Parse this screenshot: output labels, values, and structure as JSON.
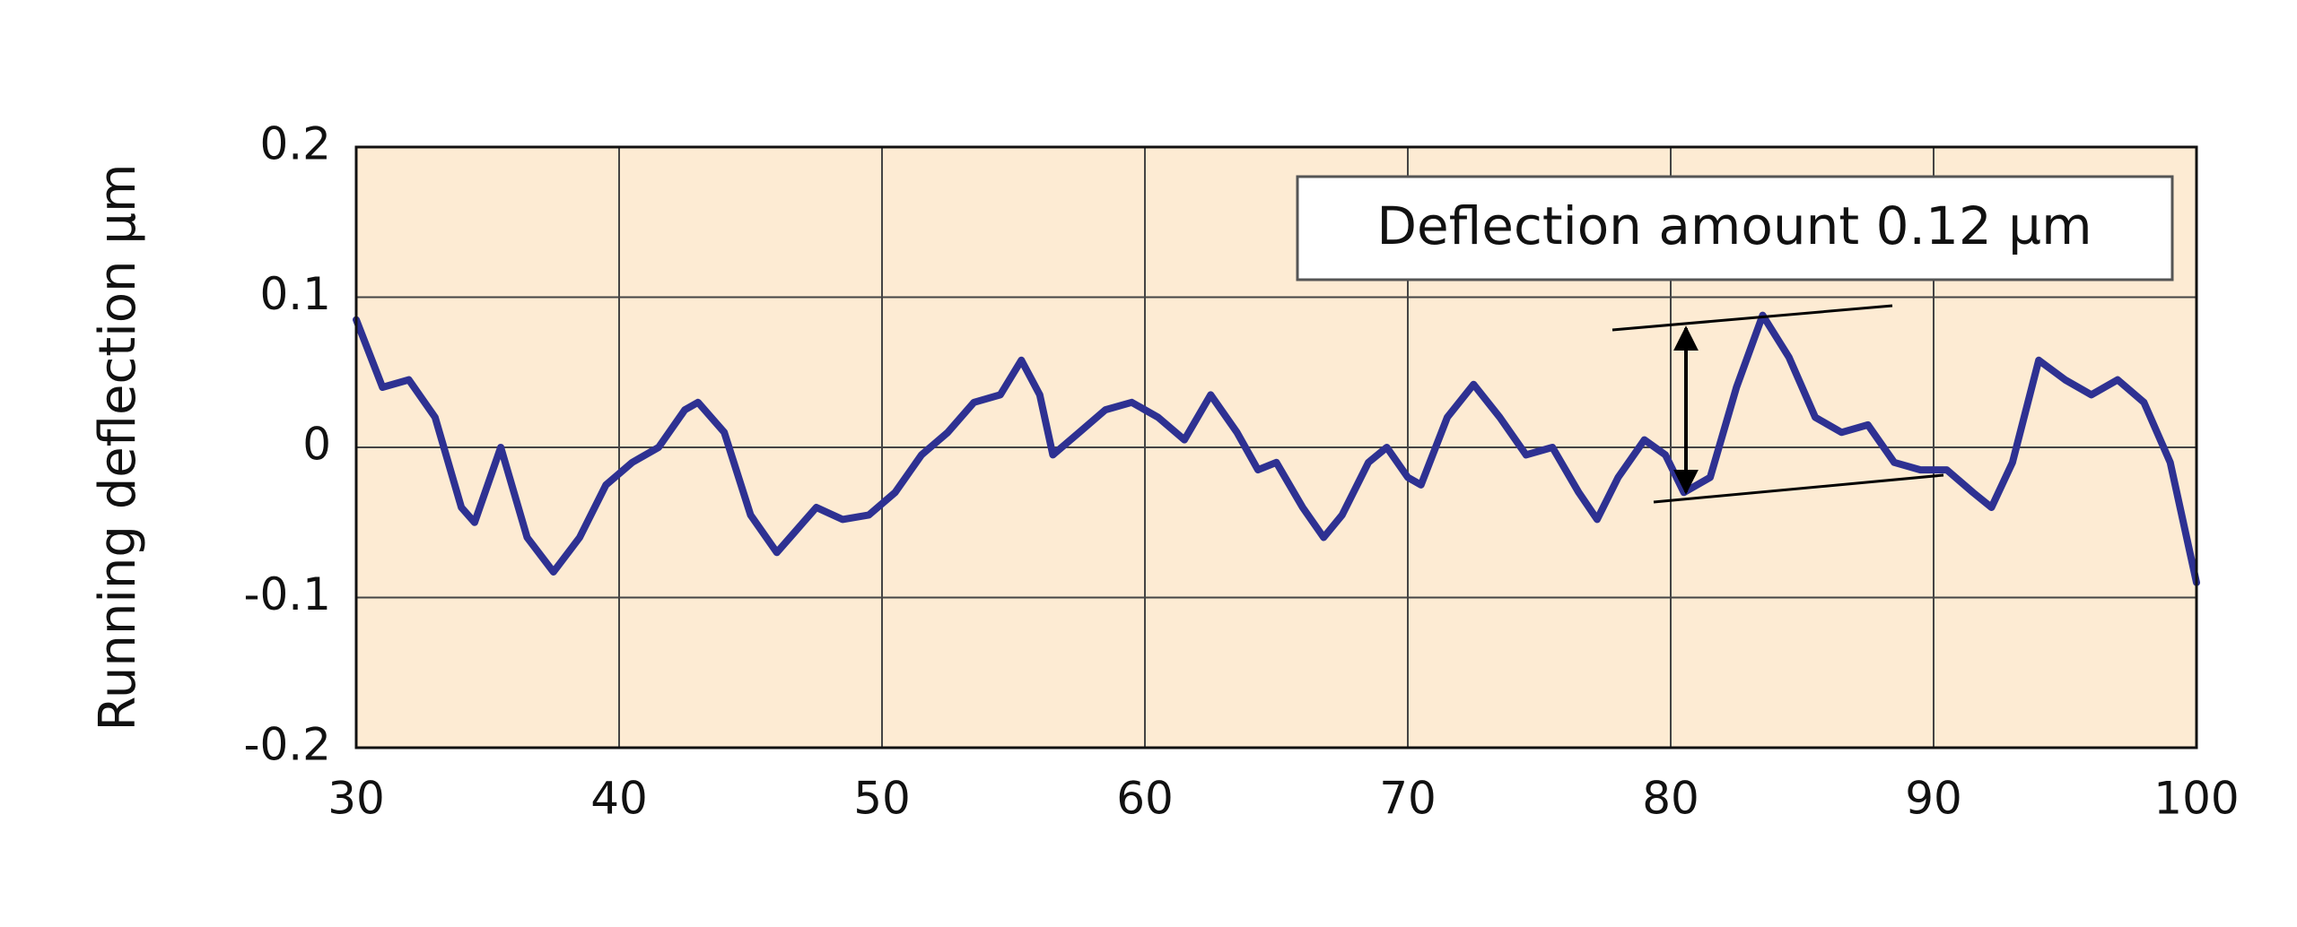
{
  "chart_data": {
    "type": "line",
    "ylabel": "Running deflection μm",
    "annotation": "Deflection amount 0.12 µm",
    "x": [
      30,
      31,
      32,
      33,
      34,
      34.5,
      35.5,
      36.5,
      37.5,
      38.5,
      39.5,
      40.5,
      41.5,
      42.5,
      43,
      44,
      45,
      46,
      47,
      47.5,
      48.5,
      49.5,
      50.5,
      51.5,
      52.5,
      53.5,
      54.5,
      55.3,
      56,
      56.5,
      57.5,
      58.5,
      59.5,
      60.5,
      61.5,
      62.5,
      63.5,
      64.3,
      65,
      66,
      66.8,
      67.5,
      68.5,
      69.2,
      70,
      70.5,
      71.5,
      72.5,
      73.5,
      74.5,
      75.5,
      76.5,
      77.2,
      78,
      79,
      79.8,
      80.5,
      81.5,
      82.5,
      83.5,
      84.5,
      85.5,
      86.5,
      87.5,
      88.5,
      89.5,
      90.5,
      91.5,
      92.2,
      93,
      94,
      95,
      96,
      97,
      98,
      99,
      100
    ],
    "values": [
      0.085,
      0.04,
      0.045,
      0.02,
      -0.04,
      -0.05,
      0.0,
      -0.06,
      -0.083,
      -0.06,
      -0.025,
      -0.01,
      0.0,
      0.025,
      0.03,
      0.01,
      -0.045,
      -0.07,
      -0.05,
      -0.04,
      -0.048,
      -0.045,
      -0.03,
      -0.005,
      0.01,
      0.03,
      0.035,
      0.058,
      0.035,
      -0.005,
      0.01,
      0.025,
      0.03,
      0.02,
      0.005,
      0.035,
      0.01,
      -0.015,
      -0.01,
      -0.04,
      -0.06,
      -0.045,
      -0.01,
      0.0,
      -0.02,
      -0.025,
      0.02,
      0.042,
      0.02,
      -0.005,
      0.0,
      -0.03,
      -0.048,
      -0.02,
      0.005,
      -0.005,
      -0.03,
      -0.02,
      0.04,
      0.088,
      0.06,
      0.02,
      0.01,
      0.015,
      -0.01,
      -0.015,
      -0.015,
      -0.03,
      -0.04,
      -0.01,
      0.058,
      0.045,
      0.035,
      0.045,
      0.03,
      -0.01,
      -0.09
    ],
    "color": "#2e3192",
    "xlim": [
      30,
      100
    ],
    "xticks": [
      30,
      40,
      50,
      60,
      70,
      80,
      90,
      100
    ],
    "ylim": [
      -0.2,
      0.2
    ],
    "yticks": [
      0.2,
      0.1,
      0,
      -0.1,
      -0.2
    ],
    "grid": true
  }
}
